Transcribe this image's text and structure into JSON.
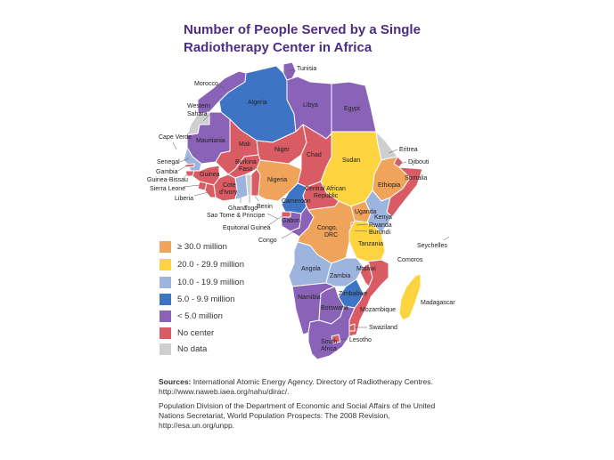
{
  "title_lines": [
    "Number of People Served by a Single",
    "Radiotherapy Center in Africa"
  ],
  "colors": {
    "c30": "#f0a35a",
    "c20": "#fdd43f",
    "c10": "#9db5de",
    "c5": "#3e74c4",
    "clt5": "#8a63b8",
    "none": "#d95b63",
    "nodata": "#cfcfcf",
    "border": "#ffffff",
    "title": "#4b2e83"
  },
  "legend": [
    {
      "key": "c30",
      "label": "≥ 30.0 million"
    },
    {
      "key": "c20",
      "label": "20.0 - 29.9 million"
    },
    {
      "key": "c10",
      "label": "10.0 - 19.9 million"
    },
    {
      "key": "c5",
      "label": "5.0 - 9.9 million"
    },
    {
      "key": "clt5",
      "label": "< 5.0 million"
    },
    {
      "key": "none",
      "label": "No center"
    },
    {
      "key": "nodata",
      "label": "No data"
    }
  ],
  "countries": {
    "tunisia": {
      "name": "Tunisia",
      "category": "clt5"
    },
    "morocco": {
      "name": "Morocco",
      "category": "clt5"
    },
    "algeria": {
      "name": "Algeria",
      "category": "c5"
    },
    "libya": {
      "name": "Libya",
      "category": "clt5"
    },
    "egypt": {
      "name": "Egypt",
      "category": "clt5"
    },
    "western_sahara": {
      "name": "Western Sahara",
      "category": "nodata"
    },
    "mauritania": {
      "name": "Mauritania",
      "category": "clt5"
    },
    "mali": {
      "name": "Mali",
      "category": "none"
    },
    "niger": {
      "name": "Niger",
      "category": "none"
    },
    "chad": {
      "name": "Chad",
      "category": "none"
    },
    "sudan": {
      "name": "Sudan",
      "category": "c20"
    },
    "eritrea": {
      "name": "Eritrea",
      "category": "nodata"
    },
    "djibouti": {
      "name": "Djibouti",
      "category": "none"
    },
    "ethiopia": {
      "name": "Ethiopia",
      "category": "c30"
    },
    "somalia": {
      "name": "Somalia",
      "category": "none"
    },
    "senegal": {
      "name": "Senegal",
      "category": "c10"
    },
    "gambia": {
      "name": "Gambia",
      "category": "none"
    },
    "guinea_bissau": {
      "name": "Guinea-Bissau",
      "category": "none"
    },
    "guinea": {
      "name": "Guinea",
      "category": "none"
    },
    "sierra_leone": {
      "name": "Sierra Leone",
      "category": "none"
    },
    "liberia": {
      "name": "Liberia",
      "category": "none"
    },
    "cote_divoire": {
      "name": "Cote d'Ivory",
      "category": "none"
    },
    "burkina_faso": {
      "name": "Burkina Faso",
      "category": "none"
    },
    "ghana": {
      "name": "Ghana",
      "category": "c10"
    },
    "togo": {
      "name": "Togo",
      "category": "nodata"
    },
    "benin": {
      "name": "Benin",
      "category": "none"
    },
    "nigeria": {
      "name": "Nigeria",
      "category": "c30"
    },
    "cameroon": {
      "name": "Cameroon",
      "category": "c5"
    },
    "car": {
      "name": "Central African Republic",
      "category": "none"
    },
    "eq_guinea": {
      "name": "Equitorial Guinea",
      "category": "none"
    },
    "gabon": {
      "name": "Gabon",
      "category": "clt5"
    },
    "congo": {
      "name": "Congo",
      "category": "clt5"
    },
    "drc": {
      "name": "Congo, DRC",
      "category": "c30"
    },
    "uganda": {
      "name": "Uganda",
      "category": "c30"
    },
    "kenya": {
      "name": "Kenya",
      "category": "c10"
    },
    "rwanda": {
      "name": "Rwanda",
      "category": "none"
    },
    "burundi": {
      "name": "Burundi",
      "category": "none"
    },
    "tanzania": {
      "name": "Tanzania",
      "category": "c20"
    },
    "angola": {
      "name": "Angola",
      "category": "c10"
    },
    "zambia": {
      "name": "Zambia",
      "category": "c10"
    },
    "malawi": {
      "name": "Malawi",
      "category": "none"
    },
    "mozambique": {
      "name": "Mozambique",
      "category": "none"
    },
    "zimbabwe": {
      "name": "Zimbabwe",
      "category": "c5"
    },
    "namibia": {
      "name": "Namibia",
      "category": "clt5"
    },
    "botswana": {
      "name": "Botswana",
      "category": "clt5"
    },
    "south_africa": {
      "name": "South Africa",
      "category": "clt5"
    },
    "swaziland": {
      "name": "Swaziland",
      "category": "none"
    },
    "lesotho": {
      "name": "Lesotho",
      "category": "none"
    },
    "madagascar": {
      "name": "Madagascar",
      "category": "c20"
    }
  },
  "extra_labels": {
    "cape_verde": "Cape Verde",
    "sao_tome": "Sao Tome & Principe",
    "seychelles": "Seychelles",
    "comoros": "Comoros",
    "drc_line1": "Congo,",
    "drc_line2": "DRC",
    "south_africa_line1": "South",
    "south_africa_line2": "Africa",
    "western_sahara_line1": "Western",
    "western_sahara_line2": "Sahara",
    "burkina_line1": "Burkina",
    "burkina_line2": "Faso",
    "cote_line1": "Cote",
    "cote_line2": "d'Ivory",
    "car_line1": "Central African",
    "car_line2": "Republic"
  },
  "sources": {
    "label": "Sources:",
    "line1": "International Atomic Energy Agency. Directory of Radiotherapy Centres. http://www.naweb.iaea.org/nahu/dirac/.",
    "line2": "Population Division of the Department of Economic and Social Affairs of the United Nations Secretariat, World Population Prospects: The 2008 Revision, http://esa.un.org/unpp."
  }
}
